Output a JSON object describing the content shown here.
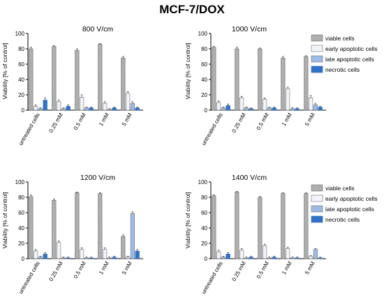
{
  "figure": {
    "title": "MCF-7/DOX"
  },
  "legend_labels": [
    "viable cells",
    "early apoptotic cells",
    "late apoptotic cells",
    "necrotic cells"
  ],
  "colors": {
    "viable": "#c8c8c8",
    "early": "#f1f5fb",
    "late": "#9bbbe7",
    "necrotic": "#2f73c9",
    "axis": "#000000",
    "bar_stroke": "#6f6f6f"
  },
  "chart_data": [
    {
      "type": "bar",
      "title": "800 V/cm",
      "ylabel": "Viability [% of control]",
      "categories": [
        "untreated cells",
        "0.25 mM",
        "0.5 mM",
        "1 mM",
        "5 mM"
      ],
      "yticks": [
        0,
        20,
        40,
        60,
        80,
        100
      ],
      "ylim": [
        0,
        100
      ],
      "legend": "right",
      "series": [
        {
          "name": "viable cells",
          "values": [
            80,
            83,
            78,
            86,
            68
          ],
          "errors": [
            2,
            1,
            2,
            1,
            2
          ]
        },
        {
          "name": "early apoptotic cells",
          "values": [
            5,
            11,
            17,
            9,
            22
          ],
          "errors": [
            2,
            2,
            3,
            2,
            2
          ]
        },
        {
          "name": "late apoptotic cells",
          "values": [
            2,
            2,
            3,
            1,
            9
          ],
          "errors": [
            1,
            1,
            1,
            1,
            2
          ]
        },
        {
          "name": "necrotic cells",
          "values": [
            13,
            5,
            3,
            3,
            3
          ],
          "errors": [
            3,
            2,
            1,
            1,
            1
          ]
        }
      ]
    },
    {
      "type": "bar",
      "title": "1000 V/cm",
      "ylabel": "Viability [% of control]",
      "categories": [
        "untreated cells",
        "0.25 mM",
        "0.5 mM",
        "1 mM",
        "5 mM"
      ],
      "yticks": [
        0,
        20,
        40,
        60,
        80,
        100
      ],
      "ylim": [
        0,
        100
      ],
      "legend": "right",
      "series": [
        {
          "name": "viable cells",
          "values": [
            82,
            80,
            80,
            68,
            70
          ],
          "errors": [
            1,
            2,
            1,
            2,
            1
          ]
        },
        {
          "name": "early apoptotic cells",
          "values": [
            10,
            16,
            14,
            28,
            16
          ],
          "errors": [
            2,
            2,
            2,
            2,
            3
          ]
        },
        {
          "name": "late apoptotic cells",
          "values": [
            3,
            3,
            3,
            2,
            7
          ],
          "errors": [
            1,
            1,
            1,
            1,
            2
          ]
        },
        {
          "name": "necrotic cells",
          "values": [
            6,
            2,
            3,
            2,
            4
          ],
          "errors": [
            2,
            1,
            1,
            1,
            1
          ]
        }
      ]
    },
    {
      "type": "bar",
      "title": "1200 V/cm",
      "ylabel": "Viability [% of control]",
      "categories": [
        "untreated cells",
        "0.25 mM",
        "0.5 mM",
        "1 mM",
        "5 mM"
      ],
      "yticks": [
        0,
        20,
        40,
        60,
        80,
        100
      ],
      "ylim": [
        0,
        100
      ],
      "legend": "right",
      "series": [
        {
          "name": "viable cells",
          "values": [
            81,
            76,
            86,
            85,
            29
          ],
          "errors": [
            2,
            2,
            1,
            1,
            2
          ]
        },
        {
          "name": "early apoptotic cells",
          "values": [
            10,
            21,
            12,
            12,
            2
          ],
          "errors": [
            2,
            2,
            2,
            2,
            1
          ]
        },
        {
          "name": "late apoptotic cells",
          "values": [
            2,
            1,
            1,
            1,
            59
          ],
          "errors": [
            1,
            1,
            1,
            1,
            2
          ]
        },
        {
          "name": "necrotic cells",
          "values": [
            6,
            1,
            1,
            2,
            10
          ],
          "errors": [
            2,
            1,
            1,
            1,
            2
          ]
        }
      ]
    },
    {
      "type": "bar",
      "title": "1400 V/cm",
      "ylabel": "Viability [% of control]",
      "categories": [
        "untreated cells",
        "0.25 mM",
        "0.5 mM",
        "1 mM",
        "5 mM"
      ],
      "yticks": [
        0,
        20,
        40,
        60,
        80,
        100
      ],
      "ylim": [
        0,
        100
      ],
      "legend": "right",
      "series": [
        {
          "name": "viable cells",
          "values": [
            82,
            87,
            80,
            85,
            85
          ],
          "errors": [
            1,
            1,
            1,
            1,
            1
          ]
        },
        {
          "name": "early apoptotic cells",
          "values": [
            9,
            11,
            17,
            13,
            3
          ],
          "errors": [
            2,
            2,
            2,
            2,
            1
          ]
        },
        {
          "name": "late apoptotic cells",
          "values": [
            2,
            1,
            1,
            1,
            12
          ],
          "errors": [
            1,
            1,
            1,
            1,
            1
          ]
        },
        {
          "name": "necrotic cells",
          "values": [
            6,
            2,
            2,
            1,
            1
          ],
          "errors": [
            2,
            1,
            1,
            1,
            1
          ]
        }
      ]
    }
  ]
}
